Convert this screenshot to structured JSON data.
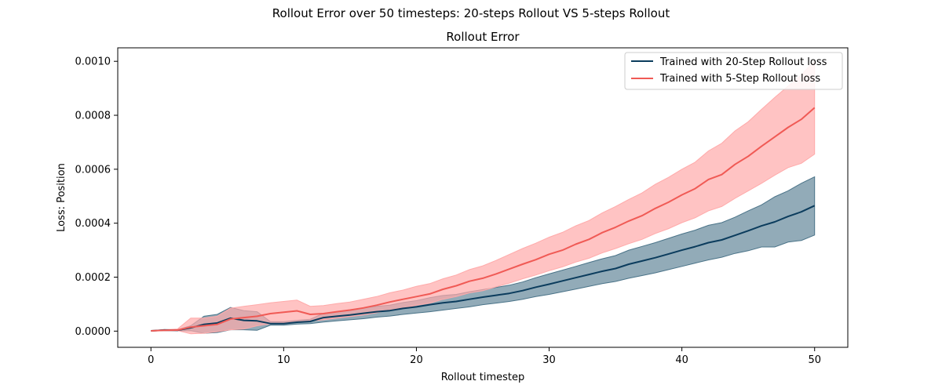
{
  "figure": {
    "suptitle": "Rollout Error over 50 timesteps: 20-steps Rollout VS 5-steps Rollout"
  },
  "chart_data": {
    "type": "line",
    "title": "Rollout Error",
    "xlabel": "Rollout timestep",
    "ylabel": "Loss: Position",
    "xlim": [
      -2.5,
      52.5
    ],
    "ylim": [
      -6e-05,
      0.00105
    ],
    "x_ticks": [
      0,
      10,
      20,
      30,
      40,
      50
    ],
    "x_tick_labels": [
      "0",
      "10",
      "20",
      "30",
      "40",
      "50"
    ],
    "y_ticks": [
      0.0,
      0.0002,
      0.0004,
      0.0006,
      0.0008,
      0.001
    ],
    "y_tick_labels": [
      "0.0000",
      "0.0002",
      "0.0004",
      "0.0006",
      "0.0008",
      "0.0010"
    ],
    "grid": false,
    "legend_position": "top-right",
    "x": [
      0,
      1,
      2,
      3,
      4,
      5,
      6,
      7,
      8,
      9,
      10,
      11,
      12,
      13,
      14,
      15,
      16,
      17,
      18,
      19,
      20,
      21,
      22,
      23,
      24,
      25,
      26,
      27,
      28,
      29,
      30,
      31,
      32,
      33,
      34,
      35,
      36,
      37,
      38,
      39,
      40,
      41,
      42,
      43,
      44,
      45,
      46,
      47,
      48,
      49,
      50
    ],
    "series": [
      {
        "name": "Trained with 20-Step Rollout loss",
        "color": "#0b3c5d",
        "band_color": "#4a7388",
        "values": [
          1e-06,
          4e-06,
          3e-06,
          1.2e-05,
          2.5e-05,
          3e-05,
          4.8e-05,
          4e-05,
          3.8e-05,
          2.8e-05,
          2.8e-05,
          3.3e-05,
          3.6e-05,
          5e-05,
          5.5e-05,
          6e-05,
          6.6e-05,
          7.2e-05,
          7.6e-05,
          8.4e-05,
          9e-05,
          9.8e-05,
          0.000105,
          0.00011,
          0.000118,
          0.000126,
          0.000133,
          0.00014,
          0.00015,
          0.000163,
          0.000174,
          0.000186,
          0.000198,
          0.00021,
          0.000222,
          0.000232,
          0.000248,
          0.00026,
          0.000272,
          0.000286,
          0.0003,
          0.000313,
          0.000328,
          0.000338,
          0.000355,
          0.000372,
          0.00039,
          0.000405,
          0.000425,
          0.000442,
          0.000465
        ],
        "lower": [
          1e-06,
          2e-06,
          1e-06,
          2e-06,
          -8e-06,
          -5e-06,
          5e-06,
          5e-06,
          3e-06,
          2.2e-05,
          2.2e-05,
          2.6e-05,
          2.8e-05,
          3.4e-05,
          3.8e-05,
          4.2e-05,
          4.6e-05,
          5.2e-05,
          5.6e-05,
          6.2e-05,
          6.7e-05,
          7.2e-05,
          7.8e-05,
          8.4e-05,
          9e-05,
          9.8e-05,
          0.000104,
          0.00011,
          0.000118,
          0.000128,
          0.000136,
          0.000146,
          0.000156,
          0.000166,
          0.000176,
          0.000184,
          0.000196,
          0.000206,
          0.000216,
          0.000228,
          0.00024,
          0.000252,
          0.000264,
          0.000274,
          0.000288,
          0.000298,
          0.000312,
          0.000312,
          0.00033,
          0.000336,
          0.000356
        ],
        "upper": [
          1e-06,
          6e-06,
          5e-06,
          2e-05,
          5.5e-05,
          6.2e-05,
          8.8e-05,
          7.6e-05,
          7.2e-05,
          3.5e-05,
          3.5e-05,
          4e-05,
          4.4e-05,
          6.6e-05,
          7.2e-05,
          7.8e-05,
          8.6e-05,
          9.2e-05,
          9.6e-05,
          0.000106,
          0.000113,
          0.000124,
          0.000132,
          0.000136,
          0.000146,
          0.000154,
          0.000162,
          0.00017,
          0.000182,
          0.000198,
          0.000212,
          0.000226,
          0.00024,
          0.000254,
          0.000268,
          0.00028,
          0.0003,
          0.000314,
          0.000328,
          0.000344,
          0.00036,
          0.000374,
          0.000392,
          0.000402,
          0.000422,
          0.000446,
          0.000468,
          0.000498,
          0.00052,
          0.000548,
          0.000572
        ]
      },
      {
        "name": "Trained with 5-Step Rollout loss",
        "color": "#f05a55",
        "band_color": "#ffaaaa",
        "values": [
          1e-06,
          3e-06,
          4e-06,
          1.5e-05,
          2e-05,
          2.5e-05,
          4.5e-05,
          5e-05,
          5.5e-05,
          6.5e-05,
          7e-05,
          7.5e-05,
          6.2e-05,
          6.5e-05,
          7.2e-05,
          7.8e-05,
          8.6e-05,
          9.6e-05,
          0.000108,
          0.000118,
          0.000128,
          0.000138,
          0.000155,
          0.000168,
          0.000185,
          0.000196,
          0.000212,
          0.00023,
          0.000248,
          0.000265,
          0.000285,
          0.0003,
          0.000322,
          0.00034,
          0.000365,
          0.000385,
          0.000408,
          0.000428,
          0.000455,
          0.000478,
          0.000505,
          0.000528,
          0.000562,
          0.00058,
          0.000618,
          0.000648,
          0.000685,
          0.00072,
          0.000755,
          0.000785,
          0.000828
        ],
        "lower": [
          1e-06,
          1e-06,
          2e-06,
          -1e-05,
          -8e-06,
          -2e-06,
          5e-06,
          8e-06,
          2e-05,
          2.8e-05,
          3e-05,
          3.2e-05,
          3.8e-05,
          4.2e-05,
          4.8e-05,
          5.4e-05,
          6e-05,
          6.8e-05,
          7.8e-05,
          8.6e-05,
          9.6e-05,
          0.000104,
          0.000118,
          0.000128,
          0.000142,
          0.00015,
          0.000164,
          0.000178,
          0.000194,
          0.000208,
          0.000224,
          0.000238,
          0.000256,
          0.00027,
          0.00029,
          0.000306,
          0.000324,
          0.00034,
          0.000362,
          0.00038,
          0.000402,
          0.00042,
          0.000446,
          0.000462,
          0.000492,
          0.00052,
          0.000548,
          0.000578,
          0.000606,
          0.000622,
          0.000656
        ],
        "upper": [
          1e-06,
          5e-06,
          8e-06,
          4.8e-05,
          4.8e-05,
          5.5e-05,
          8.5e-05,
          9.2e-05,
          9.8e-05,
          0.000105,
          0.00011,
          0.000115,
          9.2e-05,
          9.5e-05,
          0.000102,
          0.000108,
          0.000118,
          0.000128,
          0.000142,
          0.000152,
          0.000166,
          0.000176,
          0.000194,
          0.000208,
          0.000228,
          0.000242,
          0.000262,
          0.000284,
          0.000306,
          0.000326,
          0.000348,
          0.000366,
          0.00039,
          0.00041,
          0.000438,
          0.000462,
          0.000488,
          0.000512,
          0.000544,
          0.00057,
          0.0006,
          0.000626,
          0.000668,
          0.000696,
          0.000742,
          0.000776,
          0.000822,
          0.000866,
          0.000908,
          0.00095,
          0.001002
        ]
      }
    ]
  }
}
